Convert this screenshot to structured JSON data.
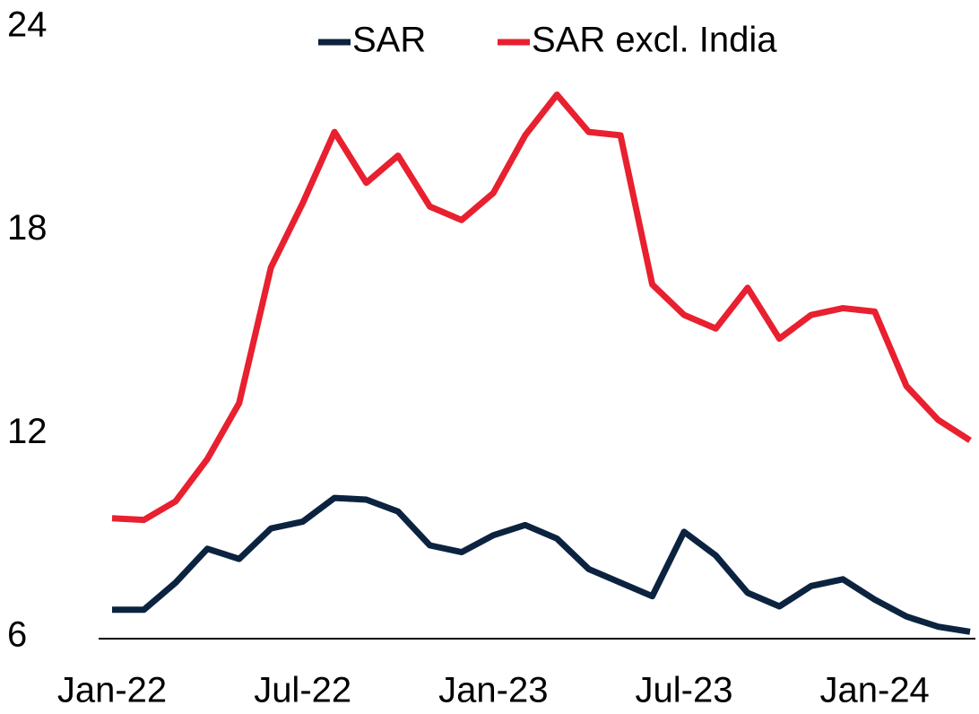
{
  "chart_data": {
    "type": "line",
    "categories": [
      "Jan-22",
      null,
      null,
      null,
      null,
      null,
      "Jul-22",
      null,
      null,
      null,
      null,
      null,
      "Jan-23",
      null,
      null,
      null,
      null,
      null,
      "Jul-23",
      null,
      null,
      null,
      null,
      null,
      "Jan-24",
      null,
      null,
      null
    ],
    "series": [
      {
        "name": "SAR",
        "color": "#0c2340",
        "values": [
          6.8,
          6.8,
          7.6,
          8.6,
          8.3,
          9.2,
          9.4,
          10.1,
          10.05,
          9.7,
          8.7,
          8.5,
          9.0,
          9.3,
          8.9,
          8.0,
          7.6,
          7.2,
          9.1,
          8.4,
          7.3,
          6.9,
          7.5,
          7.7,
          7.1,
          6.6,
          6.3,
          6.15
        ]
      },
      {
        "name": "SAR excl. India",
        "color": "#e8202f",
        "values": [
          9.5,
          9.45,
          10.0,
          11.25,
          12.9,
          16.9,
          18.8,
          20.9,
          19.4,
          20.2,
          18.7,
          18.3,
          19.1,
          20.8,
          22.0,
          20.9,
          20.8,
          16.4,
          15.5,
          15.1,
          16.3,
          14.8,
          15.5,
          15.7,
          15.6,
          13.4,
          12.4,
          11.8
        ]
      }
    ],
    "ylim": [
      6,
      24
    ],
    "yticks": [
      6,
      12,
      18,
      24
    ],
    "grid": false
  }
}
